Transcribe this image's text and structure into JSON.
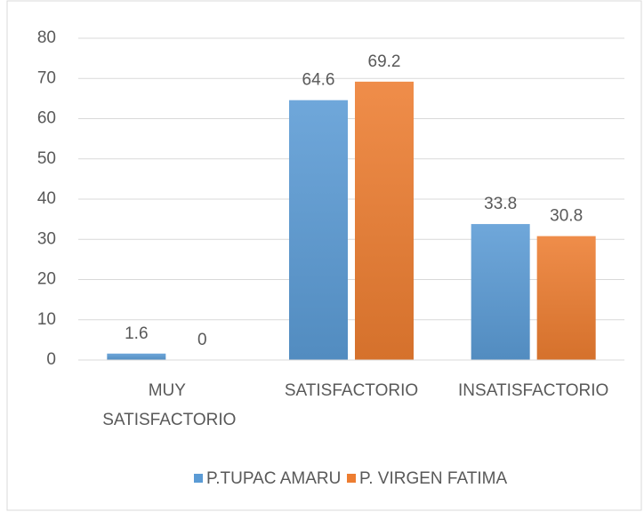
{
  "chart_data": {
    "type": "bar",
    "categories": [
      "MUY SATISFACTORIO",
      "SATISFACTORIO",
      "INSATISFACTORIO"
    ],
    "series": [
      {
        "name": "P.TUPAC AMARU",
        "color": "#5b9bd5",
        "values": [
          1.6,
          64.6,
          33.8
        ]
      },
      {
        "name": "P. VIRGEN FATIMA",
        "color": "#ed7d31",
        "values": [
          0,
          69.2,
          30.8
        ]
      }
    ],
    "ylim": [
      0,
      80
    ],
    "yticks": [
      0,
      10,
      20,
      30,
      40,
      50,
      60,
      70,
      80
    ],
    "grid": true,
    "legend": "bottom",
    "value_labels_shown": true
  }
}
